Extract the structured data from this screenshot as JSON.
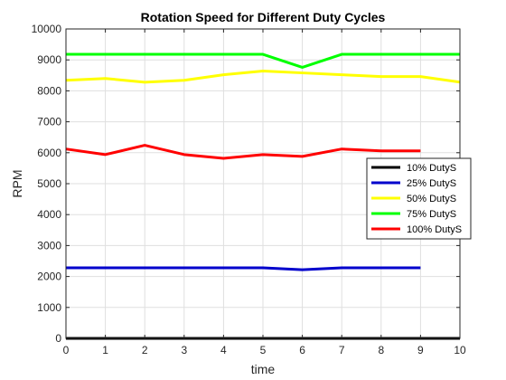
{
  "chart_data": {
    "type": "line",
    "title": "Rotation Speed for Different Duty Cycles",
    "xlabel": "time",
    "ylabel": "RPM",
    "xlim": [
      0,
      10
    ],
    "ylim": [
      0,
      10000
    ],
    "xticks": [
      "0",
      "1",
      "2",
      "3",
      "4",
      "5",
      "6",
      "7",
      "8",
      "9",
      "10"
    ],
    "yticks": [
      "0",
      "1000",
      "2000",
      "3000",
      "4000",
      "5000",
      "6000",
      "7000",
      "8000",
      "9000",
      "10000"
    ],
    "grid": true,
    "legend_position": "right",
    "series": [
      {
        "name": "10% DutyS",
        "color": "#000000",
        "x": [
          0,
          1,
          2,
          3,
          4,
          5,
          6,
          7,
          8,
          9,
          10
        ],
        "values": [
          0,
          0,
          0,
          0,
          0,
          0,
          0,
          0,
          0,
          0,
          0
        ]
      },
      {
        "name": "25% DutyS",
        "color": "#0000cc",
        "x": [
          0,
          1,
          2,
          3,
          4,
          5,
          6,
          7,
          8,
          9
        ],
        "values": [
          2280,
          2280,
          2280,
          2280,
          2280,
          2280,
          2220,
          2280,
          2280,
          2280
        ]
      },
      {
        "name": "50% DutyS",
        "color": "#ffff00",
        "x": [
          0,
          1,
          2,
          3,
          4,
          5,
          6,
          7,
          8,
          9,
          10
        ],
        "values": [
          8340,
          8400,
          8280,
          8340,
          8520,
          8640,
          8580,
          8520,
          8460,
          8460,
          8280
        ]
      },
      {
        "name": "75% DutyS",
        "color": "#00ff00",
        "x": [
          0,
          1,
          2,
          3,
          4,
          5,
          6,
          7,
          8,
          9,
          10
        ],
        "values": [
          9180,
          9180,
          9180,
          9180,
          9180,
          9180,
          8760,
          9180,
          9180,
          9180,
          9180
        ]
      },
      {
        "name": "100% DutyS",
        "color": "#ff0000",
        "x": [
          0,
          1,
          2,
          3,
          4,
          5,
          6,
          7,
          8,
          9
        ],
        "values": [
          6120,
          5940,
          6240,
          5940,
          5820,
          5940,
          5880,
          6120,
          6060,
          6060
        ]
      }
    ]
  }
}
